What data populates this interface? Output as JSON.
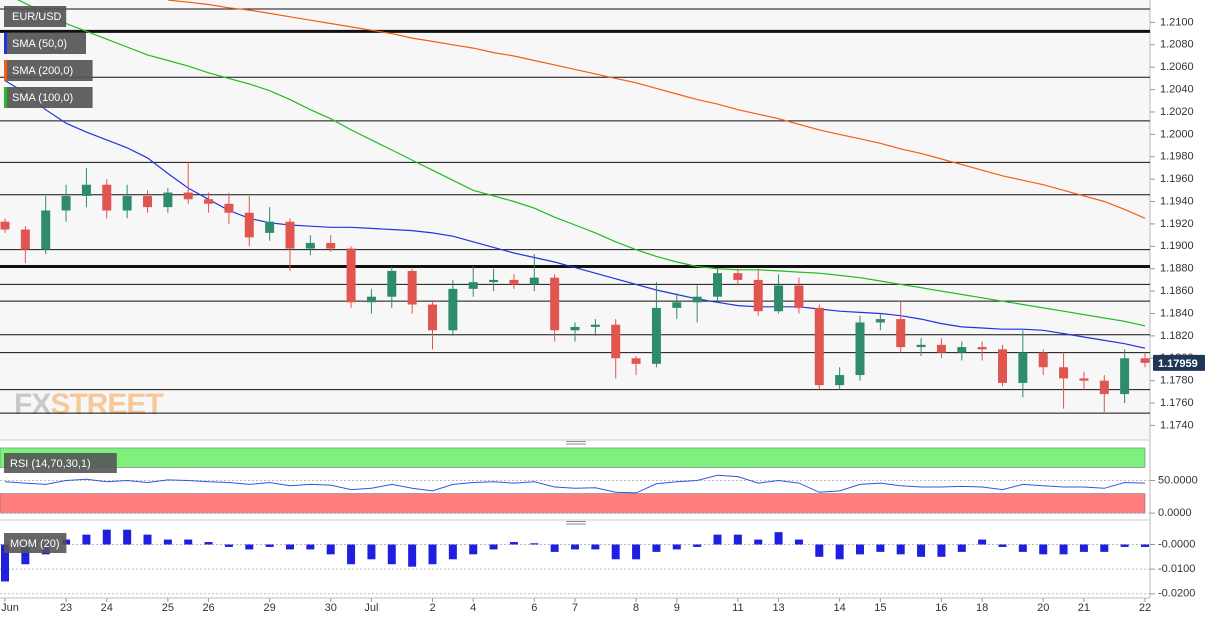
{
  "chart_data": {
    "type": "candlestick",
    "symbol": "EUR/USD",
    "watermark": [
      "FX",
      "STREET"
    ],
    "up_color": "#2e8b6e",
    "down_color": "#e0554f",
    "ylim": [
      1.1727,
      1.212
    ],
    "yticks": [
      {
        "value": 1.21,
        "label": "1.2100"
      },
      {
        "value": 1.208,
        "label": "1.2080"
      },
      {
        "value": 1.206,
        "label": "1.2060"
      },
      {
        "value": 1.204,
        "label": "1.2040"
      },
      {
        "value": 1.202,
        "label": "1.2020"
      },
      {
        "value": 1.2,
        "label": "1.2000"
      },
      {
        "value": 1.198,
        "label": "1.1980"
      },
      {
        "value": 1.196,
        "label": "1.1960"
      },
      {
        "value": 1.194,
        "label": "1.1940"
      },
      {
        "value": 1.192,
        "label": "1.1920"
      },
      {
        "value": 1.19,
        "label": "1.1900"
      },
      {
        "value": 1.188,
        "label": "1.1880"
      },
      {
        "value": 1.186,
        "label": "1.1860"
      },
      {
        "value": 1.184,
        "label": "1.1840"
      },
      {
        "value": 1.182,
        "label": "1.1820"
      },
      {
        "value": 1.18,
        "label": "1.1800"
      },
      {
        "value": 1.178,
        "label": "1.1780"
      },
      {
        "value": 1.176,
        "label": "1.1760"
      },
      {
        "value": 1.174,
        "label": "1.1740"
      }
    ],
    "levels": [
      {
        "value": 1.2112
      },
      {
        "value": 1.2092,
        "major": true
      },
      {
        "value": 1.2051
      },
      {
        "value": 1.2012
      },
      {
        "value": 1.1975
      },
      {
        "value": 1.1946
      },
      {
        "value": 1.1897
      },
      {
        "value": 1.1882,
        "major": true
      },
      {
        "value": 1.1866
      },
      {
        "value": 1.1851
      },
      {
        "value": 1.1821
      },
      {
        "value": 1.1805
      },
      {
        "value": 1.1772
      },
      {
        "value": 1.1751
      }
    ],
    "categories": [
      "Jun",
      null,
      null,
      "23",
      null,
      "24",
      null,
      null,
      "25",
      null,
      "26",
      null,
      null,
      "29",
      null,
      null,
      "30",
      null,
      "Jul",
      null,
      null,
      "2",
      null,
      "4",
      null,
      null,
      "6",
      null,
      "7",
      null,
      null,
      "8",
      null,
      "9",
      null,
      null,
      "11",
      null,
      "13",
      null,
      null,
      "14",
      null,
      "15",
      null,
      null,
      "16",
      null,
      "18",
      null,
      null,
      "20",
      null,
      "21",
      null,
      null,
      "22"
    ],
    "ohlc": [
      [
        1.1922,
        1.1925,
        1.1912,
        1.1915
      ],
      [
        1.1915,
        1.1918,
        1.1885,
        1.1897
      ],
      [
        1.1897,
        1.1945,
        1.1893,
        1.1932
      ],
      [
        1.1932,
        1.1955,
        1.1922,
        1.1945
      ],
      [
        1.1945,
        1.197,
        1.1935,
        1.1955
      ],
      [
        1.1955,
        1.196,
        1.1925,
        1.1932
      ],
      [
        1.1932,
        1.1955,
        1.1925,
        1.1945
      ],
      [
        1.1945,
        1.195,
        1.193,
        1.1935
      ],
      [
        1.1935,
        1.1952,
        1.193,
        1.1948
      ],
      [
        1.1948,
        1.1975,
        1.1938,
        1.1942
      ],
      [
        1.1942,
        1.1948,
        1.193,
        1.1938
      ],
      [
        1.1938,
        1.1948,
        1.192,
        1.193
      ],
      [
        1.193,
        1.1945,
        1.19,
        1.1908
      ],
      [
        1.1912,
        1.1935,
        1.1905,
        1.1922
      ],
      [
        1.1922,
        1.1925,
        1.1878,
        1.1898
      ],
      [
        1.1898,
        1.191,
        1.1892,
        1.1903
      ],
      [
        1.1903,
        1.191,
        1.1895,
        1.1898
      ],
      [
        1.1898,
        1.19,
        1.1845,
        1.185
      ],
      [
        1.185,
        1.1862,
        1.184,
        1.1855
      ],
      [
        1.1855,
        1.1882,
        1.1845,
        1.1878
      ],
      [
        1.1878,
        1.188,
        1.184,
        1.1848
      ],
      [
        1.1848,
        1.1852,
        1.1808,
        1.1825
      ],
      [
        1.1825,
        1.187,
        1.182,
        1.1862
      ],
      [
        1.1862,
        1.1882,
        1.1855,
        1.1868
      ],
      [
        1.1868,
        1.188,
        1.186,
        1.187
      ],
      [
        1.187,
        1.1875,
        1.1862,
        1.1866
      ],
      [
        1.1866,
        1.1893,
        1.186,
        1.1872
      ],
      [
        1.1872,
        1.1875,
        1.1815,
        1.1825
      ],
      [
        1.1825,
        1.1832,
        1.1815,
        1.1828
      ],
      [
        1.1828,
        1.1835,
        1.182,
        1.183
      ],
      [
        1.183,
        1.1835,
        1.1782,
        1.18
      ],
      [
        1.18,
        1.1802,
        1.1785,
        1.1795
      ],
      [
        1.1795,
        1.1868,
        1.1792,
        1.1845
      ],
      [
        1.1845,
        1.1858,
        1.1835,
        1.185
      ],
      [
        1.185,
        1.1865,
        1.1832,
        1.1855
      ],
      [
        1.1855,
        1.188,
        1.185,
        1.1876
      ],
      [
        1.1876,
        1.188,
        1.1865,
        1.187
      ],
      [
        1.187,
        1.188,
        1.1838,
        1.1842
      ],
      [
        1.1842,
        1.1875,
        1.184,
        1.1865
      ],
      [
        1.1865,
        1.1872,
        1.184,
        1.1845
      ],
      [
        1.1845,
        1.1848,
        1.1772,
        1.1776
      ],
      [
        1.1776,
        1.1792,
        1.1772,
        1.1785
      ],
      [
        1.1785,
        1.1838,
        1.178,
        1.1832
      ],
      [
        1.1832,
        1.184,
        1.1825,
        1.1835
      ],
      [
        1.1835,
        1.1852,
        1.1805,
        1.181
      ],
      [
        1.181,
        1.1818,
        1.1802,
        1.1812
      ],
      [
        1.1812,
        1.1818,
        1.18,
        1.1805
      ],
      [
        1.1805,
        1.1815,
        1.1798,
        1.181
      ],
      [
        1.181,
        1.1815,
        1.1798,
        1.1808
      ],
      [
        1.1808,
        1.1812,
        1.1775,
        1.1778
      ],
      [
        1.1778,
        1.1825,
        1.1765,
        1.1805
      ],
      [
        1.1805,
        1.1808,
        1.1785,
        1.1792
      ],
      [
        1.1792,
        1.1805,
        1.1755,
        1.1782
      ],
      [
        1.1782,
        1.1788,
        1.1772,
        1.178
      ],
      [
        1.178,
        1.1785,
        1.1752,
        1.1768
      ],
      [
        1.1768,
        1.1808,
        1.176,
        1.18
      ],
      [
        1.18,
        1.1805,
        1.1792,
        1.17959
      ]
    ],
    "series": [
      {
        "name": "SMA (50,0)",
        "color": "#2233dd",
        "values": [
          1.2048,
          1.2037,
          1.2022,
          1.201,
          1.2002,
          1.1995,
          1.1988,
          1.1979,
          1.1965,
          1.1952,
          1.1942,
          1.1932,
          1.1925,
          1.1921,
          1.1919,
          1.1918,
          1.1917,
          1.1917,
          1.1916,
          1.1915,
          1.1914,
          1.1912,
          1.1909,
          1.1904,
          1.1899,
          1.1894,
          1.189,
          1.1886,
          1.1881,
          1.1876,
          1.1871,
          1.1866,
          1.1861,
          1.1857,
          1.1853,
          1.185,
          1.1847,
          1.1846,
          1.1846,
          1.1846,
          1.1844,
          1.1842,
          1.1841,
          1.184,
          1.1838,
          1.1835,
          1.1831,
          1.1828,
          1.1827,
          1.1826,
          1.1826,
          1.1825,
          1.1822,
          1.1819,
          1.1816,
          1.1813,
          1.1809
        ]
      },
      {
        "name": "SMA (200,0)",
        "color": "#f06010",
        "values": [
          null,
          null,
          null,
          null,
          null,
          null,
          null,
          null,
          1.212,
          1.2118,
          1.2116,
          1.2113,
          1.2111,
          1.2108,
          1.2105,
          1.2102,
          1.2099,
          1.2096,
          1.2093,
          1.209,
          1.2086,
          1.2083,
          1.208,
          1.2077,
          1.2073,
          1.207,
          1.2066,
          1.2062,
          1.2058,
          1.2054,
          1.205,
          1.2046,
          1.2041,
          1.2036,
          1.2031,
          1.2027,
          1.2022,
          1.2018,
          1.2014,
          1.2009,
          1.2004,
          1.2,
          1.1996,
          1.1992,
          1.1987,
          1.1983,
          1.1978,
          1.1973,
          1.1968,
          1.1963,
          1.1959,
          1.1955,
          1.195,
          1.1945,
          1.194,
          1.1933,
          1.1925
        ]
      },
      {
        "name": "SMA (100,0)",
        "color": "#22bb22",
        "values": [
          1.2126,
          1.2117,
          1.2108,
          1.2099,
          1.2092,
          1.2085,
          1.2078,
          1.2071,
          1.2066,
          1.2061,
          1.2055,
          1.205,
          1.2045,
          1.2039,
          1.2031,
          1.2022,
          1.2014,
          1.2004,
          1.1995,
          1.1986,
          1.1977,
          1.1968,
          1.1959,
          1.195,
          1.1945,
          1.194,
          1.1934,
          1.1926,
          1.1919,
          1.1912,
          1.1904,
          1.1897,
          1.1891,
          1.1886,
          1.1882,
          1.188,
          1.1879,
          1.1879,
          1.1878,
          1.1877,
          1.1876,
          1.1874,
          1.1872,
          1.1869,
          1.1866,
          1.1863,
          1.186,
          1.1857,
          1.1854,
          1.1851,
          1.1848,
          1.1845,
          1.1842,
          1.1839,
          1.1836,
          1.1833,
          1.1829
        ]
      }
    ],
    "indicators": [
      {
        "type": "line",
        "label": "RSI (14,70,30,1)",
        "color": "#3355dd",
        "ylim": [
          -10.6,
          103
        ],
        "yticks": [
          {
            "value": 50,
            "label": "50.0000"
          },
          {
            "value": 0,
            "label": "0.0000"
          }
        ],
        "bands": [
          {
            "from": 70,
            "to": 100,
            "color": "#7ef07e"
          },
          {
            "from": 0,
            "to": 30,
            "color": "#ff7f7f"
          }
        ],
        "values": [
          48,
          46,
          44,
          50,
          52,
          48,
          50,
          47,
          51,
          50,
          48,
          47,
          44,
          47,
          42,
          44,
          43,
          36,
          38,
          44,
          38,
          34,
          44,
          47,
          48,
          46,
          48,
          40,
          38,
          39,
          32,
          31,
          45,
          48,
          50,
          58,
          56,
          46,
          50,
          46,
          32,
          34,
          44,
          46,
          42,
          40,
          40,
          41,
          40,
          36,
          44,
          42,
          40,
          40,
          38,
          47,
          46
        ]
      },
      {
        "type": "bar",
        "label": "MOM (20)",
        "color": "#1f1fe0",
        "ylim": [
          -0.0217,
          0.0075
        ],
        "yticks": [
          {
            "value": 0,
            "label": "-0.0000"
          },
          {
            "value": -0.01,
            "label": "-0.0100"
          },
          {
            "value": -0.02,
            "label": "-0.0200"
          }
        ],
        "values": [
          -0.015,
          -0.008,
          -0.004,
          0.002,
          0.004,
          0.006,
          0.006,
          0.004,
          0.002,
          0.002,
          0.001,
          -0.001,
          -0.002,
          -0.001,
          -0.002,
          -0.002,
          -0.004,
          -0.008,
          -0.006,
          -0.008,
          -0.009,
          -0.008,
          -0.006,
          -0.004,
          -0.002,
          0.001,
          0.0005,
          -0.003,
          -0.002,
          -0.002,
          -0.006,
          -0.006,
          -0.003,
          -0.002,
          -0.001,
          0.004,
          0.004,
          0.002,
          0.005,
          0.002,
          -0.005,
          -0.006,
          -0.004,
          -0.003,
          -0.004,
          -0.005,
          -0.005,
          -0.003,
          0.002,
          -0.001,
          -0.003,
          -0.004,
          -0.004,
          -0.003,
          -0.003,
          -0.001,
          -0.001
        ]
      }
    ]
  }
}
